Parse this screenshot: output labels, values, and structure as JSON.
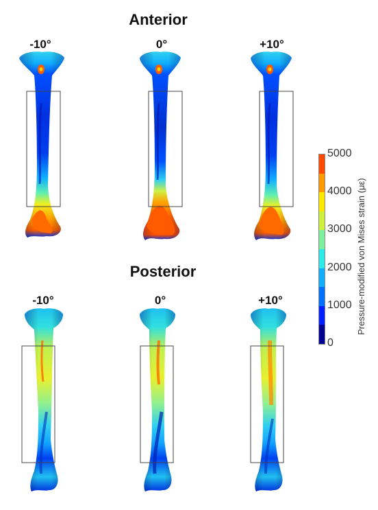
{
  "figure": {
    "sections": [
      {
        "title": "Anterior",
        "angles": [
          "-10°",
          "0°",
          "+10°"
        ]
      },
      {
        "title": "Posterior",
        "angles": [
          "-10°",
          "0°",
          "+10°"
        ]
      }
    ],
    "colorbar": {
      "label": "Pressure-modified von Mises strain (με)",
      "ticks": [
        "0",
        "1000",
        "2000",
        "3000",
        "4000",
        "5000"
      ],
      "range": [
        0,
        5000
      ],
      "colors": [
        "#000090",
        "#0020ff",
        "#0070ff",
        "#10b0ff",
        "#30e8e8",
        "#80f0a0",
        "#d0f040",
        "#ffe800",
        "#ff9a00",
        "#ff4a00"
      ]
    }
  }
}
